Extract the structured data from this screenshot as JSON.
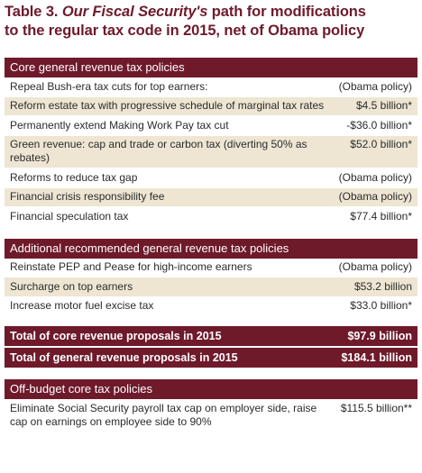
{
  "title": {
    "line1_prefix": "Table 3. ",
    "line1_italic": "Our Fiscal Security's",
    "line1_suffix": " path for modifications",
    "line2": "to the regular tax code in 2015, net of Obama policy"
  },
  "colors": {
    "header_bg": "#6e1a2b",
    "shade_row": "#eee6d3",
    "title": "#6e1a2b"
  },
  "sections": [
    {
      "header": "Core general revenue tax policies",
      "rows": [
        {
          "label": "Repeal Bush-era tax cuts for top earners:",
          "value": "(Obama policy)"
        },
        {
          "label": "Reform estate tax with progressive schedule of marginal tax rates",
          "value": "$4.5 billion*"
        },
        {
          "label": "Permanently extend Making Work Pay tax cut",
          "value": "-$36.0 billion*"
        },
        {
          "label": "Green revenue: cap and trade or carbon tax (diverting 50% as rebates)",
          "value": "$52.0 billion*"
        },
        {
          "label": "Reforms to reduce tax gap",
          "value": "(Obama policy)"
        },
        {
          "label": "Financial crisis responsibility fee",
          "value": "(Obama policy)"
        },
        {
          "label": "Financial speculation tax",
          "value": "$77.4 billion*"
        }
      ]
    },
    {
      "header": "Additional recommended general revenue tax policies",
      "rows": [
        {
          "label": "Reinstate PEP and Pease for high-income earners",
          "value": "(Obama policy)"
        },
        {
          "label": "Surcharge on top earners",
          "value": "$53.2 billion"
        },
        {
          "label": "Increase motor fuel excise tax",
          "value": "$33.0 billion*"
        }
      ]
    }
  ],
  "totals": [
    {
      "label": "Total of core revenue proposals in 2015",
      "value": "$97.9 billion"
    },
    {
      "label": "Total of general revenue proposals in 2015",
      "value": "$184.1 billion"
    }
  ],
  "offbudget": {
    "header": "Off-budget core tax policies",
    "rows": [
      {
        "label": "Eliminate Social Security payroll tax cap on employer side, raise cap on earnings on employee side to 90%",
        "value": "$115.5 billion**"
      }
    ]
  }
}
